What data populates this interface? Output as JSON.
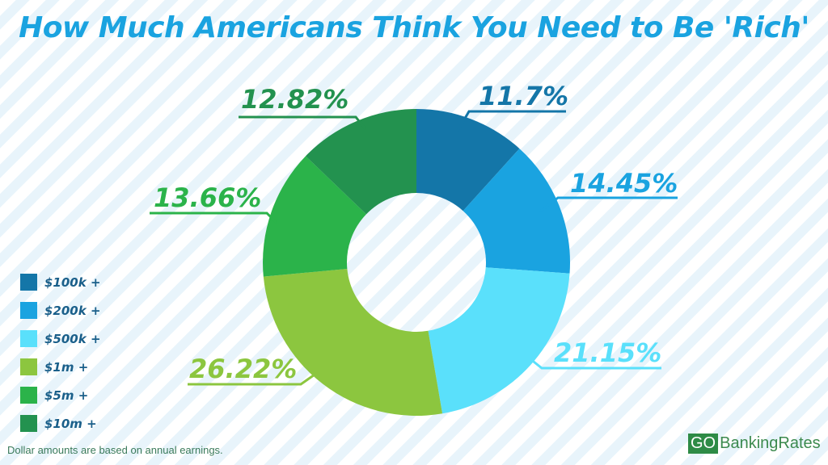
{
  "chart_data": {
    "type": "pie",
    "donut": true,
    "title": "How Much Americans Think You Need to Be 'Rich'",
    "categories": [
      "$100k +",
      "$200k +",
      "$500k +",
      "$1m +",
      "$5m +",
      "$10m +"
    ],
    "values": [
      11.7,
      14.45,
      21.15,
      26.22,
      13.66,
      12.82
    ],
    "data_labels": [
      "11.7%",
      "14.45%",
      "21.15%",
      "26.22%",
      "13.66%",
      "12.82%"
    ],
    "colors": [
      "#1476a8",
      "#1aa3e0",
      "#5ae0fb",
      "#8cc63f",
      "#2bb34a",
      "#23924f"
    ],
    "legend_position": "left",
    "start": "top",
    "direction": "clockwise"
  },
  "footnote": "Dollar amounts are based on annual earnings.",
  "logo": {
    "go": "GO",
    "rest": "BankingRates"
  }
}
